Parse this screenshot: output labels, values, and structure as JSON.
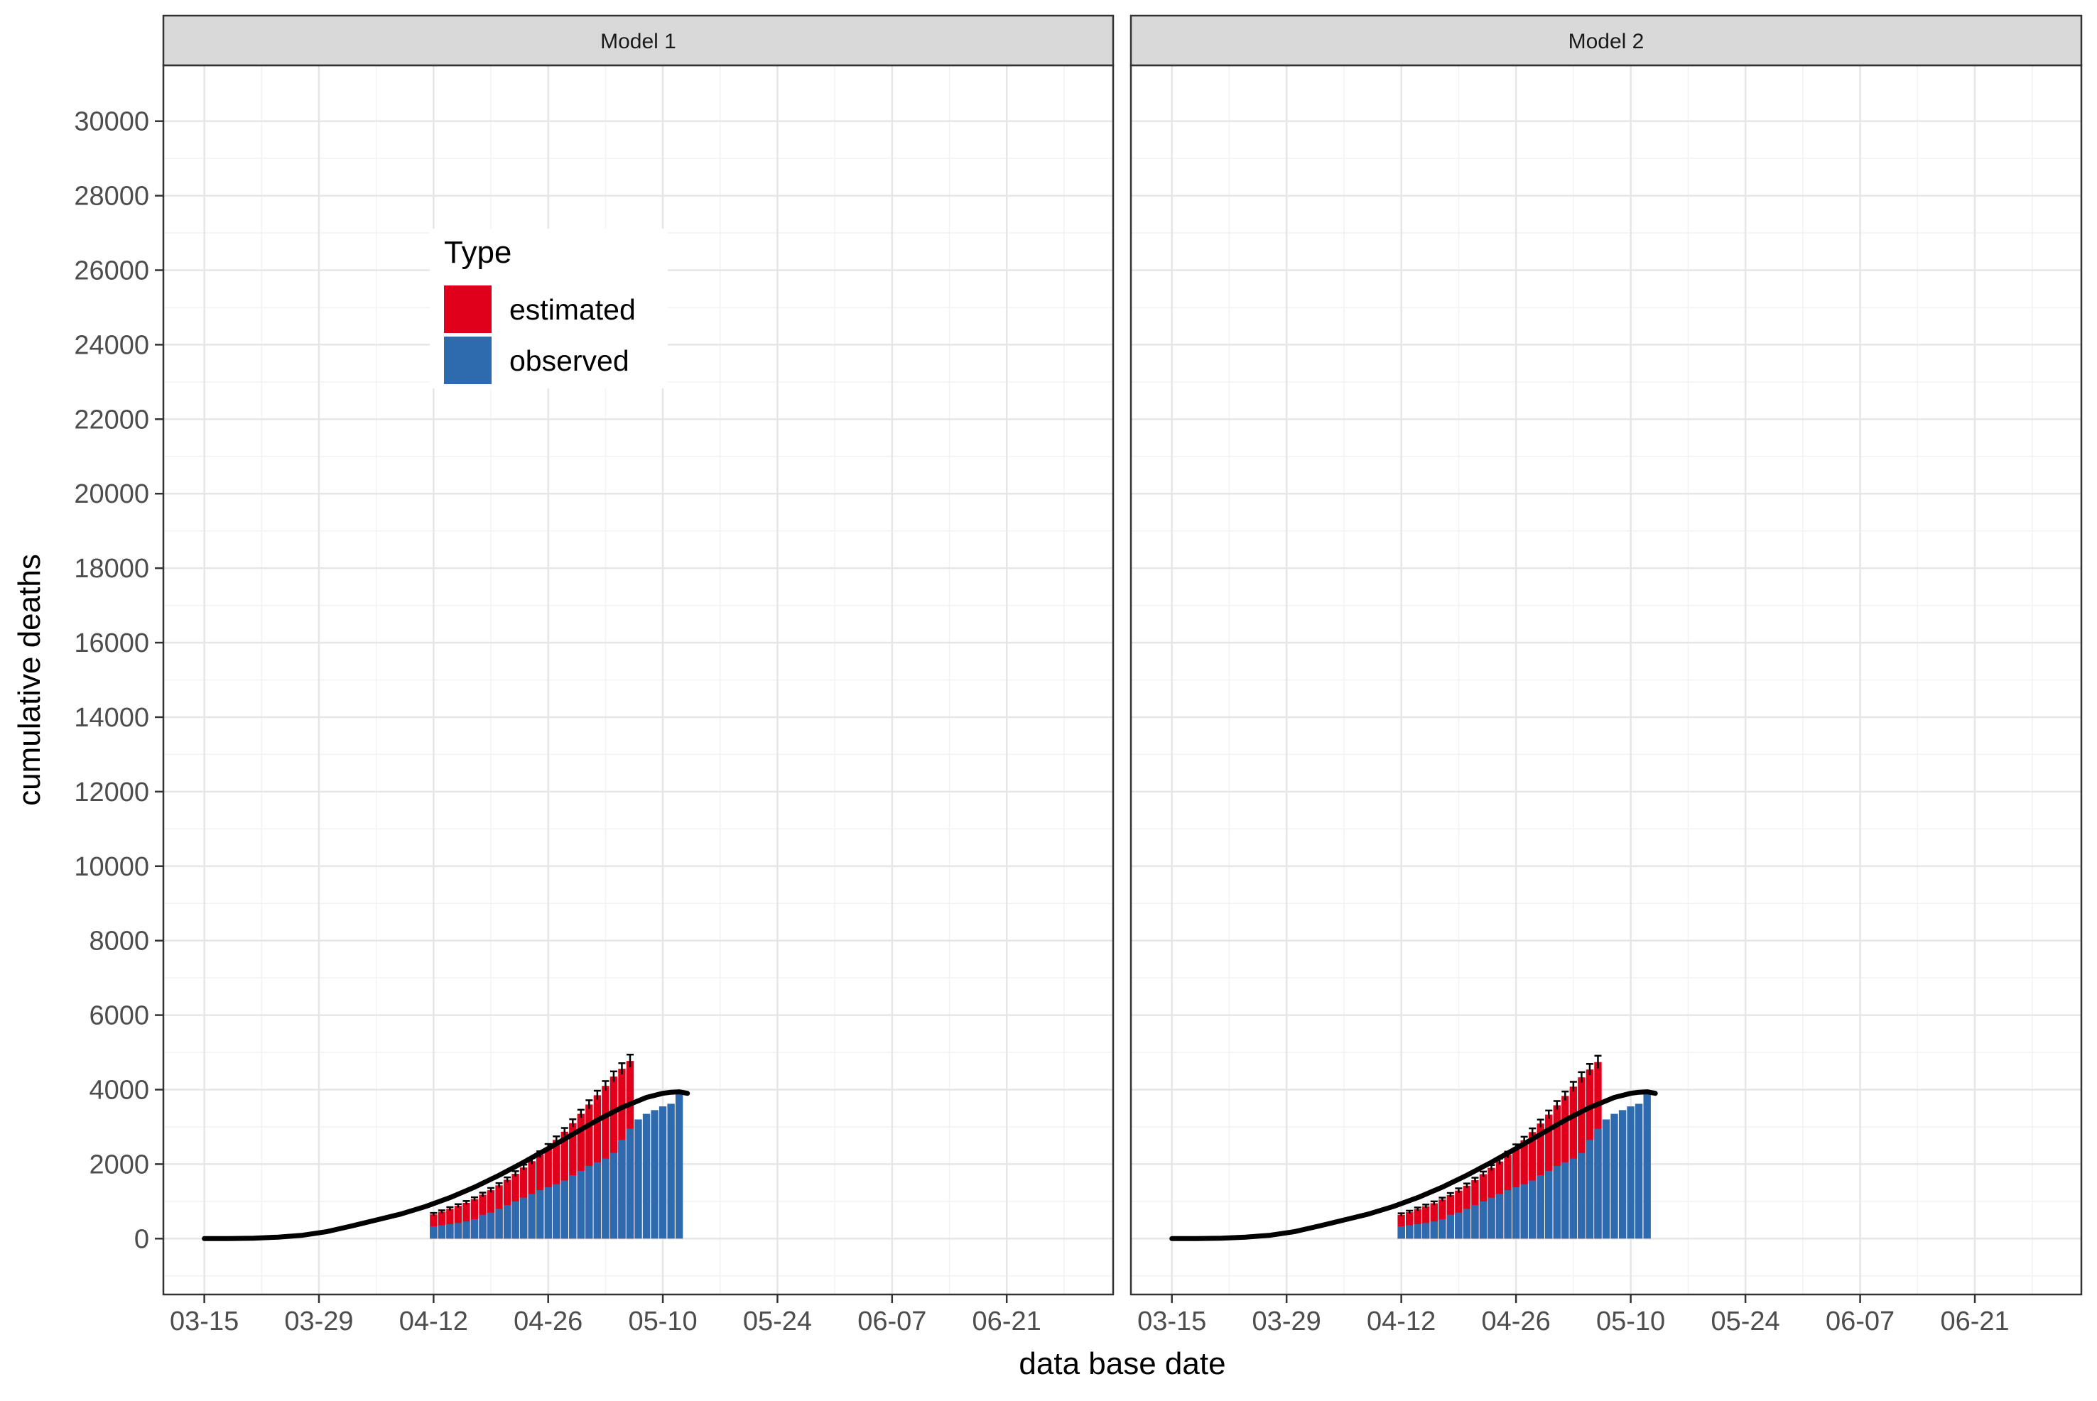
{
  "chart_data": {
    "type": "bar",
    "facet_labels": [
      "Model 1",
      "Model 2"
    ],
    "xlabel": "data base date",
    "ylabel": "cumulative deaths",
    "x_tick_labels": [
      "03-15",
      "03-29",
      "04-12",
      "04-26",
      "05-10",
      "05-24",
      "06-07",
      "06-21"
    ],
    "x_tick_day_offsets": [
      0,
      14,
      28,
      42,
      56,
      70,
      84,
      98
    ],
    "xlim_days": [
      -5,
      111
    ],
    "y_ticks": [
      0,
      2000,
      4000,
      6000,
      8000,
      10000,
      12000,
      14000,
      16000,
      18000,
      20000,
      22000,
      24000,
      26000,
      28000,
      30000
    ],
    "ylim": [
      -1500,
      31500
    ],
    "legend_title": "Type",
    "legend": [
      {
        "label": "estimated",
        "color": "#E0001B"
      },
      {
        "label": "observed",
        "color": "#2E6AAE"
      }
    ],
    "bar_days": [
      28,
      29,
      30,
      31,
      32,
      33,
      34,
      35,
      36,
      37,
      38,
      39,
      40,
      41,
      42,
      43,
      44,
      45,
      46,
      47,
      48,
      49,
      50,
      51,
      52,
      53,
      54,
      55,
      56,
      57,
      58
    ],
    "panels": [
      {
        "name": "Model 1",
        "observed": [
          330,
          360,
          390,
          420,
          460,
          520,
          640,
          700,
          800,
          900,
          1000,
          1100,
          1200,
          1300,
          1380,
          1460,
          1560,
          1700,
          1820,
          1950,
          2050,
          2150,
          2300,
          2650,
          2950,
          3200,
          3350,
          3450,
          3550,
          3620,
          3950
        ],
        "estimated": [
          650,
          720,
          800,
          880,
          960,
          1060,
          1180,
          1300,
          1430,
          1580,
          1740,
          1910,
          2080,
          2260,
          2450,
          2650,
          2870,
          3100,
          3350,
          3600,
          3850,
          4100,
          4350,
          4560,
          4770,
          null,
          null,
          null,
          null,
          null,
          null
        ],
        "error": [
          40,
          40,
          45,
          45,
          50,
          50,
          55,
          60,
          60,
          65,
          70,
          75,
          80,
          85,
          90,
          95,
          100,
          105,
          110,
          115,
          120,
          130,
          140,
          150,
          170,
          null,
          null,
          null,
          null,
          null,
          null
        ]
      },
      {
        "name": "Model 2",
        "observed": [
          330,
          360,
          390,
          420,
          460,
          520,
          640,
          700,
          800,
          900,
          1000,
          1100,
          1200,
          1300,
          1380,
          1460,
          1560,
          1700,
          1820,
          1950,
          2050,
          2150,
          2300,
          2650,
          2950,
          3200,
          3350,
          3450,
          3550,
          3620,
          3950
        ],
        "estimated": [
          640,
          710,
          790,
          870,
          950,
          1050,
          1170,
          1290,
          1420,
          1570,
          1730,
          1900,
          2070,
          2250,
          2440,
          2640,
          2860,
          3090,
          3330,
          3580,
          3830,
          4080,
          4330,
          4540,
          4740,
          null,
          null,
          null,
          null,
          null,
          null
        ],
        "error": [
          40,
          40,
          45,
          45,
          50,
          50,
          55,
          60,
          60,
          65,
          70,
          75,
          80,
          85,
          90,
          95,
          100,
          105,
          110,
          115,
          120,
          130,
          140,
          150,
          170,
          null,
          null,
          null,
          null,
          null,
          null
        ]
      }
    ],
    "fit_line": {
      "days": [
        0,
        3,
        6,
        9,
        12,
        15,
        18,
        21,
        24,
        27,
        30,
        33,
        36,
        39,
        42,
        45,
        48,
        51,
        54,
        56,
        57,
        58,
        59
      ],
      "values": [
        0,
        0,
        10,
        40,
        90,
        190,
        340,
        500,
        660,
        860,
        1100,
        1380,
        1700,
        2050,
        2420,
        2800,
        3180,
        3520,
        3790,
        3900,
        3930,
        3940,
        3900
      ]
    }
  }
}
